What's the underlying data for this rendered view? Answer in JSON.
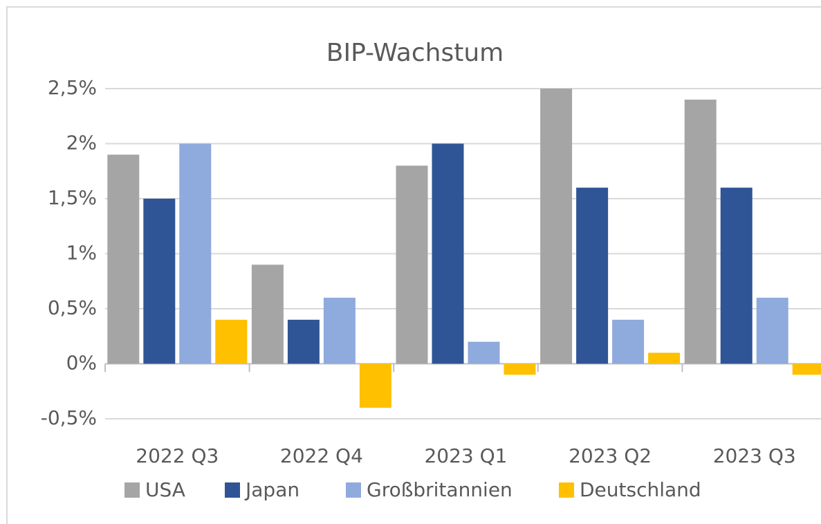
{
  "chart_data": {
    "type": "bar",
    "title": "BIP-Wachstum",
    "categories": [
      "2022 Q3",
      "2022 Q4",
      "2023 Q1",
      "2023 Q2",
      "2023 Q3"
    ],
    "series": [
      {
        "name": "USA",
        "color": "#a5a5a5",
        "values": [
          1.9,
          0.9,
          1.8,
          2.5,
          2.4
        ]
      },
      {
        "name": "Japan",
        "color": "#2f5597",
        "values": [
          1.5,
          0.4,
          2.0,
          1.6,
          1.6
        ]
      },
      {
        "name": "Großbritannien",
        "color": "#8faadc",
        "values": [
          2.0,
          0.6,
          0.2,
          0.4,
          0.6
        ]
      },
      {
        "name": "Deutschland",
        "color": "#ffc000",
        "values": [
          0.4,
          -0.4,
          -0.1,
          0.1,
          -0.1
        ]
      }
    ],
    "ylim": [
      -0.5,
      2.5
    ],
    "yticks": [
      {
        "value": -0.5,
        "label": "-0,5%"
      },
      {
        "value": 0,
        "label": "0%"
      },
      {
        "value": 0.5,
        "label": "0,5%"
      },
      {
        "value": 1,
        "label": "1%"
      },
      {
        "value": 1.5,
        "label": "1,5%"
      },
      {
        "value": 2,
        "label": "2%"
      },
      {
        "value": 2.5,
        "label": "2,5%"
      }
    ],
    "grid": true,
    "legend": "bottom"
  }
}
